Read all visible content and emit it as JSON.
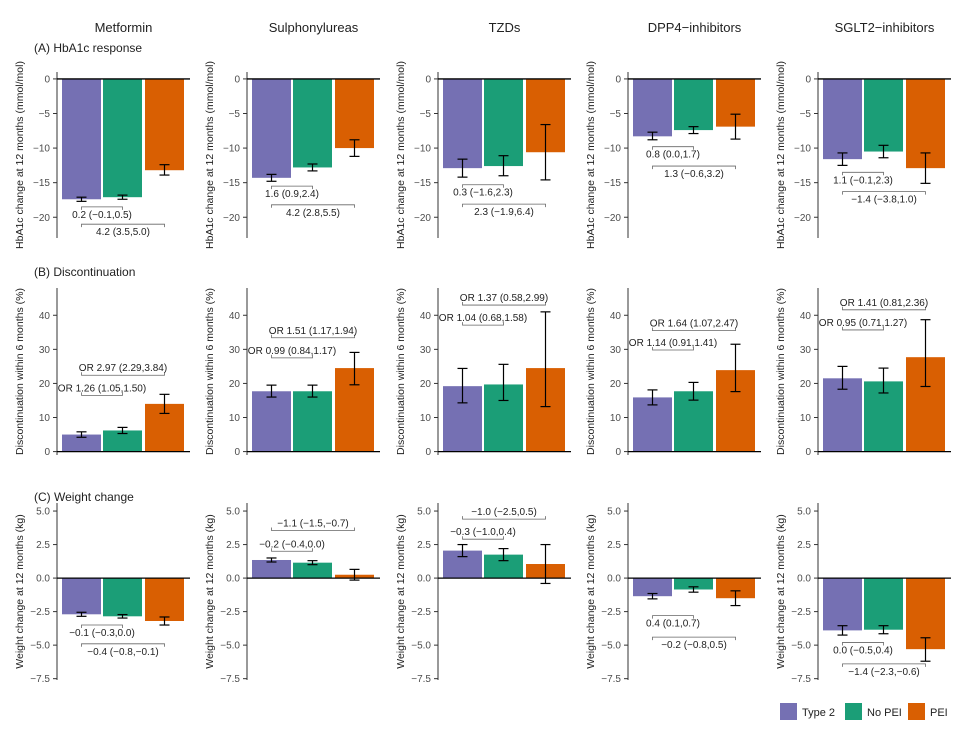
{
  "figure": {
    "drug_classes": [
      "Metformin",
      "Sulphonylureas",
      "TZDs",
      "DPP4−inhibitors",
      "SGLT2−inhibitors"
    ],
    "legend": [
      {
        "label": "Type 2",
        "color": "#7570b3"
      },
      {
        "label": "No PEI",
        "color": "#1b9e77"
      },
      {
        "label": "PEI",
        "color": "#d95f02"
      }
    ]
  },
  "chart_data": [
    {
      "type": "bar",
      "panel_title": "(A) HbA1c response",
      "ylabel": "HbA1c change at 12 months (mmol/mol)",
      "ylim": [
        -23,
        1
      ],
      "yticks": [
        0,
        -5,
        -10,
        -15,
        -20
      ],
      "ytick_labels": [
        "0",
        "−5",
        "−10",
        "−15",
        "−20"
      ],
      "series_names": [
        "Type 2",
        "No PEI",
        "PEI"
      ],
      "facets": [
        {
          "title": "Metformin",
          "bars": [
            {
              "value": -17.4,
              "lower": -17.7,
              "upper": -17.1
            },
            {
              "value": -17.1,
              "lower": -17.4,
              "upper": -16.8
            },
            {
              "value": -13.2,
              "lower": -13.9,
              "upper": -12.4
            }
          ],
          "comparisons": [
            {
              "from": 0,
              "to": 1,
              "label": "0.2 (−0.1,0.5)",
              "y": -18.5
            },
            {
              "from": 0,
              "to": 2,
              "label": "4.2 (3.5,5.0)",
              "y": -21.0
            }
          ]
        },
        {
          "title": "Sulphonylureas",
          "bars": [
            {
              "value": -14.3,
              "lower": -14.8,
              "upper": -13.8
            },
            {
              "value": -12.8,
              "lower": -13.3,
              "upper": -12.3
            },
            {
              "value": -10.0,
              "lower": -11.2,
              "upper": -8.8
            }
          ],
          "comparisons": [
            {
              "from": 0,
              "to": 1,
              "label": "1.6 (0.9,2.4)",
              "y": -15.5
            },
            {
              "from": 0,
              "to": 2,
              "label": "4.2 (2.8,5.5)",
              "y": -18.2
            }
          ]
        },
        {
          "title": "TZDs",
          "bars": [
            {
              "value": -12.9,
              "lower": -14.2,
              "upper": -11.6
            },
            {
              "value": -12.6,
              "lower": -14.0,
              "upper": -11.1
            },
            {
              "value": -10.6,
              "lower": -14.6,
              "upper": -6.6
            }
          ],
          "comparisons": [
            {
              "from": 0,
              "to": 1,
              "label": "0.3 (−1.6,2.3)",
              "y": -15.3
            },
            {
              "from": 0,
              "to": 2,
              "label": "2.3 (−1.9,6.4)",
              "y": -18.1
            }
          ]
        },
        {
          "title": "DPP4−inhibitors",
          "bars": [
            {
              "value": -8.3,
              "lower": -8.8,
              "upper": -7.7
            },
            {
              "value": -7.4,
              "lower": -7.9,
              "upper": -6.9
            },
            {
              "value": -6.9,
              "lower": -8.7,
              "upper": -5.1
            }
          ],
          "comparisons": [
            {
              "from": 0,
              "to": 1,
              "label": "0.8 (0.0,1.7)",
              "y": -9.8
            },
            {
              "from": 0,
              "to": 2,
              "label": "1.3 (−0.6,3.2)",
              "y": -12.6
            }
          ]
        },
        {
          "title": "SGLT2−inhibitors",
          "bars": [
            {
              "value": -11.6,
              "lower": -12.5,
              "upper": -10.7
            },
            {
              "value": -10.5,
              "lower": -11.4,
              "upper": -9.6
            },
            {
              "value": -12.9,
              "lower": -15.1,
              "upper": -10.7
            }
          ],
          "comparisons": [
            {
              "from": 0,
              "to": 1,
              "label": "1.1 (−0.1,2.3)",
              "y": -13.5
            },
            {
              "from": 0,
              "to": 2,
              "label": "−1.4 (−3.8,1.0)",
              "y": -16.3
            }
          ]
        }
      ]
    },
    {
      "type": "bar",
      "panel_title": "(B) Discontinuation",
      "ylabel": "Discontinuation within 6 months (%)",
      "ylim": [
        -1,
        48
      ],
      "yticks": [
        0,
        10,
        20,
        30,
        40
      ],
      "ytick_labels": [
        "0",
        "10",
        "20",
        "30",
        "40"
      ],
      "series_names": [
        "Type 2",
        "No PEI",
        "PEI"
      ],
      "facets": [
        {
          "title": "Metformin",
          "bars": [
            {
              "value": 5.0,
              "lower": 4.2,
              "upper": 5.8
            },
            {
              "value": 6.2,
              "lower": 5.3,
              "upper": 7.1
            },
            {
              "value": 14.0,
              "lower": 11.2,
              "upper": 16.8
            }
          ],
          "comparisons": [
            {
              "from": 0,
              "to": 1,
              "label": "OR 1.26 (1.05,1.50)",
              "y": 16.5
            },
            {
              "from": 0,
              "to": 2,
              "label": "OR 2.97 (2.29,3.84)",
              "y": 22.4
            }
          ]
        },
        {
          "title": "Sulphonylureas",
          "bars": [
            {
              "value": 17.7,
              "lower": 16.0,
              "upper": 19.5
            },
            {
              "value": 17.7,
              "lower": 16.0,
              "upper": 19.5
            },
            {
              "value": 24.5,
              "lower": 19.6,
              "upper": 29.1
            }
          ],
          "comparisons": [
            {
              "from": 0,
              "to": 1,
              "label": "OR 0.99 (0.84,1.17)",
              "y": 27.5
            },
            {
              "from": 0,
              "to": 2,
              "label": "OR 1.51 (1.17,1.94)",
              "y": 33.4
            }
          ]
        },
        {
          "title": "TZDs",
          "bars": [
            {
              "value": 19.2,
              "lower": 14.3,
              "upper": 24.4
            },
            {
              "value": 19.7,
              "lower": 15.0,
              "upper": 25.6
            },
            {
              "value": 24.5,
              "lower": 13.2,
              "upper": 41.0
            }
          ],
          "comparisons": [
            {
              "from": 0,
              "to": 1,
              "label": "OR 1.04 (0.68,1.58)",
              "y": 37.1
            },
            {
              "from": 0,
              "to": 2,
              "label": "OR 1.37 (0.58,2.99)",
              "y": 43.0
            }
          ]
        },
        {
          "title": "DPP4−inhibitors",
          "bars": [
            {
              "value": 15.9,
              "lower": 13.7,
              "upper": 18.1
            },
            {
              "value": 17.7,
              "lower": 15.1,
              "upper": 20.3
            },
            {
              "value": 23.9,
              "lower": 17.6,
              "upper": 31.5
            }
          ],
          "comparisons": [
            {
              "from": 0,
              "to": 1,
              "label": "OR 1.14 (0.91,1.41)",
              "y": 29.8
            },
            {
              "from": 0,
              "to": 2,
              "label": "OR 1.64 (1.07,2.47)",
              "y": 35.5
            }
          ]
        },
        {
          "title": "SGLT2−inhibitors",
          "bars": [
            {
              "value": 21.5,
              "lower": 18.3,
              "upper": 25.0
            },
            {
              "value": 20.6,
              "lower": 17.2,
              "upper": 24.5
            },
            {
              "value": 27.7,
              "lower": 19.1,
              "upper": 38.7
            }
          ],
          "comparisons": [
            {
              "from": 0,
              "to": 1,
              "label": "OR 0.95 (0.71,1.27)",
              "y": 35.7
            },
            {
              "from": 0,
              "to": 2,
              "label": "OR 1.41 (0.81,2.36)",
              "y": 41.6
            }
          ]
        }
      ]
    },
    {
      "type": "bar",
      "panel_title": "(C) Weight change",
      "ylabel": "Weight change at 12 months (kg)",
      "ylim": [
        -7.6,
        5.6
      ],
      "yticks": [
        5.0,
        2.5,
        0.0,
        -2.5,
        -5.0,
        -7.5
      ],
      "ytick_labels": [
        "5.0",
        "2.5",
        "0.0",
        "−2.5",
        "−5.0",
        "−7.5"
      ],
      "series_names": [
        "Type 2",
        "No PEI",
        "PEI"
      ],
      "facets": [
        {
          "title": "Metformin",
          "bars": [
            {
              "value": -2.7,
              "lower": -2.85,
              "upper": -2.55
            },
            {
              "value": -2.85,
              "lower": -2.98,
              "upper": -2.72
            },
            {
              "value": -3.2,
              "lower": -3.5,
              "upper": -2.9
            }
          ],
          "comparisons": [
            {
              "from": 0,
              "to": 1,
              "label": "−0.1 (−0.3,0.0)",
              "y": -3.5
            },
            {
              "from": 0,
              "to": 2,
              "label": "−0.4 (−0.8,−0.1)",
              "y": -4.9
            }
          ]
        },
        {
          "title": "Sulphonylureas",
          "bars": [
            {
              "value": 1.35,
              "lower": 1.2,
              "upper": 1.5
            },
            {
              "value": 1.15,
              "lower": 1.0,
              "upper": 1.3
            },
            {
              "value": 0.25,
              "lower": -0.15,
              "upper": 0.65
            }
          ],
          "comparisons": [
            {
              "from": 0,
              "to": 1,
              "label": "−0.2 (−0.4,0.0)",
              "y": 2.0
            },
            {
              "from": 0,
              "to": 2,
              "label": "−1.1 (−1.5,−0.7)",
              "y": 3.55
            }
          ]
        },
        {
          "title": "TZDs",
          "bars": [
            {
              "value": 2.05,
              "lower": 1.6,
              "upper": 2.5
            },
            {
              "value": 1.75,
              "lower": 1.3,
              "upper": 2.2
            },
            {
              "value": 1.05,
              "lower": -0.4,
              "upper": 2.5
            }
          ],
          "comparisons": [
            {
              "from": 0,
              "to": 1,
              "label": "−0.3 (−1.0,0.4)",
              "y": 2.9
            },
            {
              "from": 0,
              "to": 2,
              "label": "−1.0 (−2.5,0.5)",
              "y": 4.4
            }
          ]
        },
        {
          "title": "DPP4−inhibitors",
          "bars": [
            {
              "value": -1.35,
              "lower": -1.55,
              "upper": -1.15
            },
            {
              "value": -0.85,
              "lower": -1.05,
              "upper": -0.65
            },
            {
              "value": -1.5,
              "lower": -2.05,
              "upper": -0.95
            }
          ],
          "comparisons": [
            {
              "from": 0,
              "to": 1,
              "label": "0.4 (0.1,0.7)",
              "y": -2.8
            },
            {
              "from": 0,
              "to": 2,
              "label": "−0.2 (−0.8,0.5)",
              "y": -4.4
            }
          ]
        },
        {
          "title": "SGLT2−inhibitors",
          "bars": [
            {
              "value": -3.9,
              "lower": -4.25,
              "upper": -3.55
            },
            {
              "value": -3.85,
              "lower": -4.15,
              "upper": -3.55
            },
            {
              "value": -5.3,
              "lower": -6.2,
              "upper": -4.45
            }
          ],
          "comparisons": [
            {
              "from": 0,
              "to": 1,
              "label": "0.0 (−0.5,0.4)",
              "y": -4.8
            },
            {
              "from": 0,
              "to": 2,
              "label": "−1.4 (−2.3,−0.6)",
              "y": -6.4
            }
          ]
        }
      ]
    }
  ]
}
